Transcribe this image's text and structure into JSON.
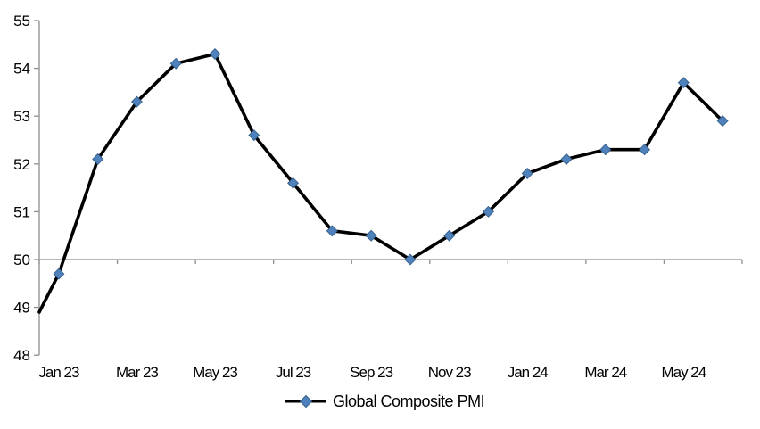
{
  "chart_data": {
    "type": "line",
    "categories": [
      "Jan 23",
      "Feb 23",
      "Mar 23",
      "Apr 23",
      "May 23",
      "Jun 23",
      "Jul 23",
      "Aug 23",
      "Sep 23",
      "Oct 23",
      "Nov 23",
      "Dec 23",
      "Jan 24",
      "Feb 24",
      "Mar 24",
      "Apr 24",
      "May 24",
      "Jun 24"
    ],
    "series": [
      {
        "name": "Global Composite PMI",
        "values": [
          49.7,
          52.1,
          53.3,
          54.1,
          54.3,
          52.6,
          51.6,
          50.6,
          50.5,
          50.0,
          50.5,
          51.0,
          51.8,
          52.1,
          52.3,
          52.3,
          53.7,
          52.9
        ]
      }
    ],
    "left_edge_entry_value": 48.9,
    "x_axis_tick_labels": [
      "Jan 23",
      "Mar 23",
      "May 23",
      "Jul 23",
      "Sep 23",
      "Nov 23",
      "Jan 24",
      "Mar 24",
      "May 24"
    ],
    "x_label_every_n_categories": 2,
    "y_tick_labels": [
      "48",
      "49",
      "50",
      "51",
      "52",
      "53",
      "54",
      "55"
    ],
    "ylim": [
      48,
      55
    ],
    "y_tick_interval": 1,
    "x_axis_crosses_at": 50,
    "grid": "off",
    "title": "",
    "legend": {
      "label": "Global Composite PMI",
      "position": "bottom"
    },
    "styles": {
      "line_color": "#000000",
      "marker_color": "#4f81bd",
      "marker_edge_color": "#36618e",
      "axis_color": "#8e8e8e",
      "label_color": "#000000"
    }
  }
}
